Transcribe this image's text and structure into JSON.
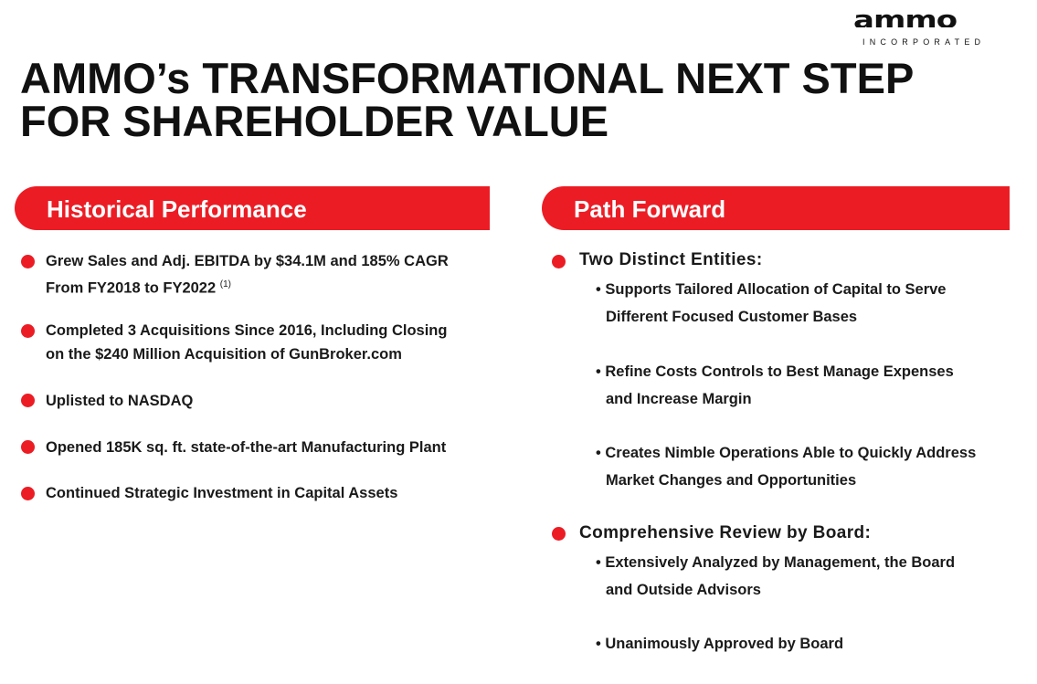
{
  "logo": {
    "word": "ammo",
    "sub": "INCORPORATED"
  },
  "title": {
    "line1": "AMMO’s TRANSFORMATIONAL NEXT STEP",
    "line2": "FOR SHAREHOLDER VALUE"
  },
  "historical": {
    "heading": "Historical Performance",
    "items": [
      {
        "line1": "Grew Sales and Adj. EBITDA by $34.1M and 185% CAGR",
        "line2": "From FY2018 to FY2022",
        "note": "(1)"
      },
      {
        "line1": "Completed 3 Acquisitions Since 2016, Including Closing",
        "line2": "on the $240 Million Acquisition of GunBroker.com"
      },
      {
        "line1": "Uplisted to NASDAQ"
      },
      {
        "line1": "Opened 185K sq. ft. state-of-the-art Manufacturing Plant"
      },
      {
        "line1": "Continued Strategic Investment in Capital Assets"
      }
    ]
  },
  "path": {
    "heading": "Path Forward",
    "groups": [
      {
        "title": "Two Distinct Entities:",
        "bullets": [
          {
            "line1": "• Supports Tailored Allocation of Capital to Serve",
            "line2": "Different Focused Customer Bases"
          },
          {
            "line1": "• Refine Costs Controls to Best Manage Expenses",
            "line2": "and Increase Margin"
          },
          {
            "line1": "• Creates Nimble Operations Able to Quickly Address",
            "line2": "Market Changes and Opportunities"
          }
        ]
      },
      {
        "title": "Comprehensive Review by Board:",
        "bullets": [
          {
            "line1": "• Extensively Analyzed by Management, the Board",
            "line2": "and Outside Advisors"
          },
          {
            "line1": "• Unanimously Approved by Board"
          }
        ]
      }
    ]
  },
  "colors": {
    "accent": "#ec1c24",
    "text": "#1a1a1a"
  }
}
